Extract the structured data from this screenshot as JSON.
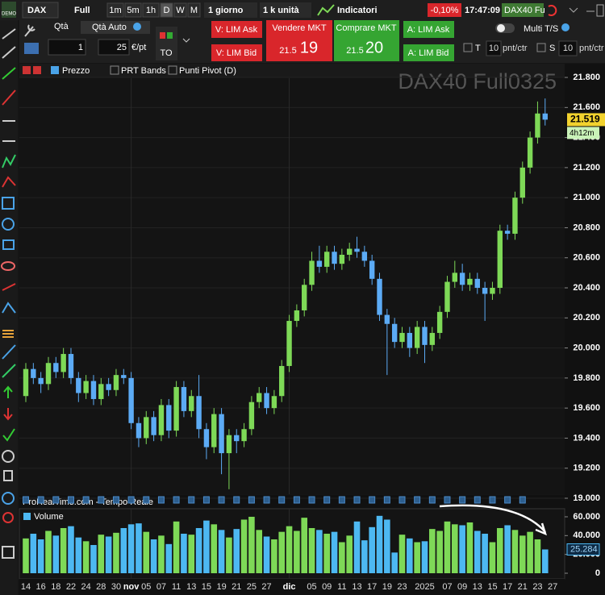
{
  "toolbar": {
    "logo": "DEMO",
    "instrument": "DAX",
    "mode": "Full",
    "timeframes": [
      "1m",
      "5m",
      "1h",
      "D",
      "W",
      "M"
    ],
    "period": "1 giorno",
    "units": "1 k unità",
    "indicators": "Indicatori",
    "change": "-0,10%",
    "time": "17:47:09",
    "ticker": "DAX40 Fu"
  },
  "order_panel": {
    "qty_label": "Qtà",
    "qty_auto": "Qtà Auto",
    "qty": "1",
    "point_value": "25",
    "point_unit": "€/pt",
    "to": "TO",
    "sell_lim_ask": "V: LIM Ask",
    "sell_lim_bid": "V: LIM Bid",
    "sell_mkt": "Vendere MKT",
    "sell_price_prefix": "21.5",
    "sell_price_suffix": "19",
    "buy_mkt": "Comprare MKT",
    "buy_price_prefix": "21.5",
    "buy_price_suffix": "20",
    "buy_lim_ask": "A: LIM Ask",
    "buy_lim_bid": "A: LIM Bid",
    "multi_ts": "Multi T/S",
    "t_label": "T",
    "t_value": "10",
    "t_unit": "pnt/ctr",
    "s_label": "S",
    "s_value": "10",
    "s_unit": "pnt/ctr"
  },
  "legend": [
    "Prezzo",
    "PRT Bands",
    "Punti Pivot (D)"
  ],
  "footer": "ProRealTime.com - Tempo Reale",
  "chart_data": [
    {
      "type": "candlestick",
      "title": "DAX40 Full0325",
      "countdown": "4h12m",
      "last_label": "21.519",
      "up_color": "#7ed957",
      "down_color": "#5cabf5",
      "categories": [
        "14",
        null,
        "16",
        null,
        "18",
        null,
        "22",
        null,
        "24",
        null,
        "28",
        null,
        "30",
        null,
        "nov",
        null,
        "05",
        null,
        "07",
        null,
        "11",
        null,
        "13",
        null,
        "15",
        null,
        "19",
        null,
        "21",
        null,
        "25",
        null,
        "27",
        null,
        null,
        "dic",
        null,
        null,
        "05",
        null,
        "09",
        null,
        "11",
        null,
        "13",
        null,
        "17",
        null,
        "19",
        null,
        "23",
        null,
        null,
        "2025",
        null,
        null,
        "07",
        null,
        "09",
        null,
        "13",
        null,
        "15",
        null,
        "17",
        null,
        "21",
        null,
        "23",
        null,
        "27"
      ],
      "open": [
        19680,
        19860,
        19800,
        19760,
        19900,
        19840,
        19960,
        19800,
        19700,
        19780,
        19660,
        19760,
        19720,
        19820,
        19800,
        19500,
        19400,
        19540,
        19420,
        19620,
        19450,
        19740,
        19580,
        19680,
        19460,
        19340,
        19560,
        19300,
        19420,
        19380,
        19460,
        19640,
        19700,
        19600,
        19680,
        19880,
        20180,
        20250,
        20420,
        20580,
        20540,
        20640,
        20560,
        20620,
        20660,
        20640,
        20580,
        20460,
        20220,
        20160,
        20040,
        20100,
        20000,
        20140,
        20020,
        20100,
        20240,
        20440,
        20500,
        20420,
        20460,
        20400,
        20360,
        20400,
        20780,
        20760,
        21000,
        21200,
        21400,
        21560,
        null
      ],
      "high": [
        19900,
        19900,
        19840,
        19940,
        19940,
        20000,
        20000,
        19840,
        19820,
        19820,
        19800,
        19800,
        19860,
        19860,
        19840,
        19540,
        19580,
        19580,
        19660,
        19660,
        19780,
        19780,
        19720,
        19820,
        19500,
        19600,
        19600,
        19460,
        19460,
        19500,
        19680,
        19740,
        19740,
        19720,
        19920,
        20220,
        20290,
        20460,
        20640,
        20680,
        20680,
        20680,
        20660,
        20700,
        20740,
        20680,
        20620,
        20500,
        20260,
        20200,
        20140,
        20140,
        20180,
        20180,
        20140,
        20280,
        20480,
        20580,
        20560,
        20500,
        20500,
        20440,
        20440,
        20820,
        20820,
        21040,
        21240,
        21440,
        21640,
        21660,
        null
      ],
      "low": [
        19640,
        19760,
        19700,
        19720,
        19800,
        19800,
        19760,
        19640,
        19660,
        19620,
        19620,
        19680,
        19680,
        19760,
        19460,
        19340,
        19360,
        19380,
        19380,
        19400,
        19410,
        19540,
        19540,
        19400,
        19260,
        19300,
        19160,
        19060,
        19300,
        19340,
        19420,
        19600,
        19560,
        19560,
        19640,
        19840,
        20140,
        20210,
        20380,
        20500,
        20500,
        20520,
        20520,
        20580,
        20600,
        20540,
        20420,
        20180,
        19820,
        20000,
        20000,
        19940,
        19960,
        19900,
        19980,
        20060,
        20200,
        20400,
        20380,
        20380,
        20360,
        20180,
        20320,
        20360,
        20720,
        20720,
        20960,
        21160,
        21360,
        21480,
        null
      ],
      "close": [
        19860,
        19800,
        19760,
        19900,
        19840,
        19960,
        19800,
        19700,
        19780,
        19660,
        19760,
        19720,
        19820,
        19800,
        19500,
        19400,
        19540,
        19420,
        19620,
        19450,
        19740,
        19580,
        19680,
        19460,
        19340,
        19560,
        19300,
        19420,
        19380,
        19460,
        19640,
        19700,
        19600,
        19680,
        19880,
        20180,
        20250,
        20420,
        20580,
        20540,
        20640,
        20560,
        20620,
        20660,
        20640,
        20580,
        20460,
        20220,
        20160,
        20040,
        20100,
        20000,
        20140,
        20020,
        20100,
        20240,
        20440,
        20500,
        20420,
        20460,
        20400,
        20360,
        20400,
        20780,
        20760,
        21000,
        21200,
        21400,
        21560,
        21519,
        null
      ],
      "ylim": [
        19000,
        21886
      ],
      "yticks": [
        {
          "value": 19000,
          "label": "19.000"
        },
        {
          "value": 19200,
          "label": "19.200"
        },
        {
          "value": 19400,
          "label": "19.400"
        },
        {
          "value": 19600,
          "label": "19.600"
        },
        {
          "value": 19800,
          "label": "19.800"
        },
        {
          "value": 20000,
          "label": "20.000"
        },
        {
          "value": 20200,
          "label": "20.200"
        },
        {
          "value": 20400,
          "label": "20.400"
        },
        {
          "value": 20600,
          "label": "20.600"
        },
        {
          "value": 20800,
          "label": "20.800"
        },
        {
          "value": 21000,
          "label": "21.000"
        },
        {
          "value": 21200,
          "label": "21.200"
        },
        {
          "value": 21400,
          "label": "21.400"
        },
        {
          "value": 21600,
          "label": "21.600"
        },
        {
          "value": 21800,
          "label": "21.800"
        }
      ],
      "grid": true
    },
    {
      "type": "bar",
      "title": "Volume",
      "last_label": "25.284",
      "up_color": "#7ed957",
      "down_color": "#4db8f2",
      "values": [
        37000,
        42000,
        36000,
        45000,
        40000,
        48000,
        50000,
        38000,
        34000,
        30000,
        41000,
        39000,
        43000,
        48000,
        52000,
        53000,
        44000,
        36000,
        40000,
        31000,
        55000,
        42000,
        41000,
        48000,
        56000,
        52000,
        46000,
        38000,
        47000,
        57000,
        60000,
        46000,
        39000,
        36000,
        44000,
        50000,
        45000,
        59000,
        48000,
        46000,
        42000,
        44000,
        33000,
        40000,
        55000,
        35000,
        49000,
        61000,
        57000,
        22000,
        41000,
        37000,
        33000,
        34000,
        47000,
        45000,
        55000,
        52000,
        51000,
        54000,
        45000,
        42000,
        33000,
        48000,
        51000,
        46000,
        40000,
        44000,
        36000,
        25284,
        null
      ],
      "ylim": [
        0,
        67700
      ],
      "yticks": [
        0,
        {
          "value": 20000,
          "label": "20.000"
        },
        {
          "value": 40000,
          "label": "40.000"
        },
        {
          "value": 60000,
          "label": "60.000"
        }
      ]
    }
  ]
}
